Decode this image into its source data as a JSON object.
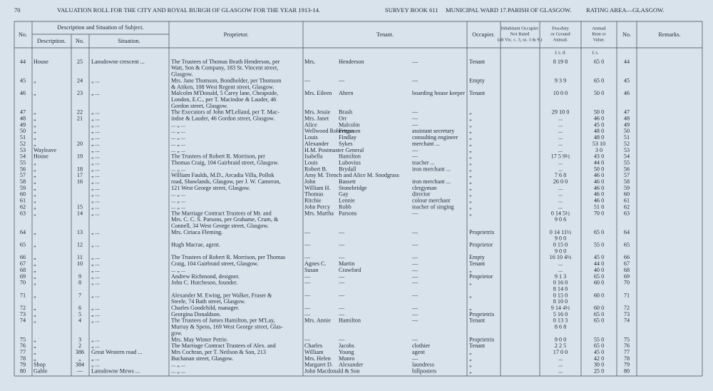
{
  "header": {
    "page_number": "70",
    "title": "VALUATION ROLL FOR THE CITY AND ROYAL BURGH OF GLASGOW FOR THE YEAR 1913-14.",
    "survey": "SURVEY BOOK 611",
    "ward": "MUNICIPAL WARD 17.",
    "parish": "PARISH OF GLASGOW.",
    "area": "RATING AREA—GLASGOW."
  },
  "columns": {
    "no": "No.",
    "group": "Description and Situation of Subject.",
    "description": "Description.",
    "number": "No.",
    "situation": "Situation.",
    "proprietor": "Proprietor.",
    "tenant": "Tenant.",
    "occupier": "Occupier.",
    "inhabitant": [
      "Inhabitant Occupier",
      "Not Rated",
      "(48 Vic. c. 3, ss. 3 & 9.)"
    ],
    "feu": [
      "Feu-duty",
      "or Ground",
      "Annual."
    ],
    "rent": [
      "Annual",
      "Rent or",
      "Value."
    ],
    "no2": "No.",
    "remarks": "Remarks.",
    "feu_units": "£  s.  d.",
    "rent_units": "£  s."
  },
  "table": {
    "rows": [
      [
        "44",
        "House",
        "25",
        "Lansdowne crescent ...",
        "The Trustees of Thomas Beath Henderson, per",
        "Mrs.",
        "Henderson",
        "—",
        "Tenant",
        "8 19 8",
        "65 0",
        "44"
      ],
      [
        null,
        null,
        null,
        null,
        "Watt, Son & Company, 183 St. Vincent street,",
        null,
        null,
        null,
        null,
        null,
        null,
        null
      ],
      [
        null,
        null,
        null,
        null,
        "Glasgow.",
        null,
        null,
        null,
        null,
        null,
        null,
        null
      ],
      [
        "45",
        "„",
        "24",
        "„ ...",
        "Mrs. Jane Thomson, Bondholder, per Thomson",
        "—",
        "—",
        "—",
        "Empty",
        "9 3 9",
        "65 0",
        "45"
      ],
      [
        null,
        null,
        null,
        null,
        "& Aitken, 108 West Regent street, Glasgow.",
        null,
        null,
        null,
        null,
        null,
        null,
        null
      ],
      [
        "46",
        "„",
        "23",
        "„ ...",
        "Malcolm M'Donald, 5 Carey lane, Cheapside,",
        "Mrs. Eileen",
        "Ahern",
        "boarding house keeper",
        "Tenant",
        "10 0 0",
        "50 0",
        "46"
      ],
      [
        null,
        null,
        null,
        null,
        "London, E.C., per T. Macindoe & Lauder, 46",
        null,
        null,
        null,
        null,
        null,
        null,
        null
      ],
      [
        null,
        null,
        null,
        null,
        "Gordon street, Glasgow.",
        null,
        null,
        null,
        null,
        null,
        null,
        null
      ],
      [
        "47",
        "„",
        "22",
        "„ ...",
        "The Executors of John M'Lelland, per T. Mac-",
        "Mrs. Jessie",
        "Brash",
        "—",
        "„",
        "29 10 0",
        "50 0",
        "47"
      ],
      [
        "48",
        "„",
        "21",
        "„ ...",
        "indoe & Lauder, 46 Gordon street, Glasgow.",
        "Mrs. Janet",
        "Orr",
        "—",
        "„",
        "...",
        "46 0",
        "48"
      ],
      [
        "49",
        "„",
        null,
        "„ ...",
        "... „ ...",
        "Alice",
        "Malcolm",
        "—",
        "„",
        "...",
        "45 0",
        "49"
      ],
      [
        "50",
        "„",
        null,
        "„ ...",
        "... „ ...",
        "Wellwood Robertson",
        "Ferguson",
        "assistant secretary",
        "„",
        "...",
        "48 0",
        "50"
      ],
      [
        "51",
        "„",
        null,
        "„ ...",
        "... „ ...",
        "Louis",
        "Findlay",
        "consulting engineer",
        "„",
        "...",
        "48 0",
        "51"
      ],
      [
        "52",
        "„",
        "20",
        "„ ...",
        "... „ ...",
        "Alexander",
        "Sykes",
        "merchant ...",
        "„",
        "...",
        "53 10",
        "52"
      ],
      [
        "53",
        "Wayleave",
        null,
        "„ ...",
        "... „ ...",
        "H.M. Postmaster General",
        null,
        "—",
        "„",
        "...",
        "3 0",
        "53"
      ],
      [
        "54",
        "House",
        "19",
        "„ ...",
        "The Trustees of Robert R. Morrison, per",
        "Isabella",
        "Hamilton",
        "—",
        "„",
        "17 5 9½",
        "43 0",
        "54"
      ],
      [
        "55",
        "„",
        null,
        "„ ...",
        "Thomas Craig, 104 Gairbraid street, Glasgow.",
        "Louis",
        "Lubovius",
        "teacher ...",
        "„",
        "...",
        "44 0",
        "55"
      ],
      [
        "56",
        "„",
        "18",
        "„ ...",
        "... „ ...",
        "Robert B.",
        "Brydall",
        "iron merchant ...",
        "„",
        "...",
        "50 0",
        "56"
      ],
      [
        "57",
        "„",
        "17",
        "„ ...",
        "William Faulds, M.D., Arcadia Villa, Pollok",
        "Amy M. Trench and Alice M. Snodgrass",
        null,
        null,
        "„",
        "7 6 8",
        "46 0",
        "57"
      ],
      [
        "58",
        "„",
        "16",
        "„ ...",
        "road, Shawlands, Glasgow, per J. W. Cameron,",
        "John",
        "Bassett",
        "iron merchant ...",
        "„",
        "26 0 0",
        "46 0",
        "58"
      ],
      [
        "59",
        "„",
        null,
        "„ ...",
        "121 West George street, Glasgow.",
        "William H.",
        "Stonebridge",
        "clergyman",
        "„",
        "...",
        "46 0",
        "59"
      ],
      [
        "60",
        "„",
        null,
        "„ ...",
        "... „ ...",
        "Thomas",
        "Gay",
        "director",
        "„",
        "...",
        "46 0",
        "60"
      ],
      [
        "61",
        "„",
        null,
        "„ ...",
        "... „ ...",
        "Ritchie",
        "Lennie",
        "colour merchant",
        "„",
        "...",
        "46 0",
        "61"
      ],
      [
        "62",
        "„",
        "15",
        "„ ...",
        "... „ ...",
        "John Percy",
        "Robb",
        "teacher of singing",
        "„",
        "...",
        "51 0",
        "62"
      ],
      [
        "63",
        "„",
        "14",
        "„ ...",
        "The Marriage Contract Trustees of Mr. and",
        "Mrs. Martha",
        "Parsons",
        "—",
        "„",
        "0 14 5½",
        "70 0",
        "63"
      ],
      [
        null,
        null,
        null,
        null,
        "Mrs. C. C. S. Parsons, per Grahame, Crum, &",
        null,
        null,
        null,
        null,
        "9 0 6",
        null,
        null
      ],
      [
        null,
        null,
        null,
        null,
        "Connell, 34 West George street, Glasgow.",
        null,
        null,
        null,
        null,
        null,
        null,
        null
      ],
      [
        "64",
        "„",
        "13",
        "„ ...",
        "Mrs. Ciriaca Fleming.",
        "—",
        "—",
        "—",
        "Proprietrix",
        "0 14 11½",
        "65 0",
        "64"
      ],
      [
        null,
        null,
        null,
        null,
        null,
        null,
        null,
        null,
        null,
        "9 0 0",
        null,
        null
      ],
      [
        "65",
        "„",
        "12",
        "„ ...",
        "Hugh Macrae, agent.",
        "—",
        "—",
        "—",
        "Proprietor",
        "0 15 0",
        "55 0",
        "65"
      ],
      [
        null,
        null,
        null,
        null,
        null,
        null,
        null,
        null,
        null,
        "9 0 0",
        null,
        null
      ],
      [
        "66",
        "„",
        "11",
        "„ ...",
        "The Trustees of Robert R. Morrison, per Thomas",
        "—",
        "—",
        "—",
        "Empty",
        "16 10 4½",
        "45 0",
        "66"
      ],
      [
        "67",
        "„",
        "10",
        "„ ...",
        "Craig, 104 Gairbraid street, Glasgow.",
        "Agnes C.",
        "Martin",
        "—",
        "Tenant",
        "...",
        "44 0",
        "67"
      ],
      [
        "68",
        "„",
        null,
        "„ ...",
        "... „ ...",
        "Susan",
        "Crawford",
        "—",
        "„",
        "...",
        "40 0",
        "68"
      ],
      [
        "69",
        "„",
        "9",
        "„ ...",
        "Andrew Richmond, designer.",
        "—",
        "—",
        "—",
        "Proprietor",
        "9 1 3",
        "65 0",
        "69"
      ],
      [
        "70",
        "„",
        "8",
        "„ ...",
        "John C. Hutcheson, founder.",
        "—",
        "—",
        "—",
        "„",
        "0 16 0",
        "60 0",
        "70"
      ],
      [
        null,
        null,
        null,
        null,
        null,
        null,
        null,
        null,
        null,
        "8 14 0",
        null,
        null
      ],
      [
        "71",
        "„",
        "7",
        "„ ...",
        "Alexander M. Ewing, per Walker, Fraser &",
        "—",
        "—",
        "—",
        "„",
        "0 15 0",
        "60 0",
        "71"
      ],
      [
        null,
        null,
        null,
        null,
        "Steele, 74 Bath street, Glasgow.",
        null,
        null,
        null,
        null,
        "8 10 0",
        null,
        null
      ],
      [
        "72",
        "„",
        "6",
        "„ ...",
        "Charles Goodchild, manager.",
        "—",
        "—",
        "—",
        "„",
        "9 14 4½",
        "60 0",
        "72"
      ],
      [
        "73",
        "„",
        "5",
        "„ ...",
        "Georgina Donaldson.",
        "—",
        "—",
        "—",
        "Proprietrix",
        "5 16 0",
        "65 0",
        "73"
      ],
      [
        "74",
        "„",
        "4",
        "„ ...",
        "The Trustees of James Hamilton, per M'Lay,",
        "Mrs. Annie",
        "Hamilton",
        "—",
        "Tenant",
        "0 13 3",
        "65 0",
        "74"
      ],
      [
        null,
        null,
        null,
        null,
        "Murray & Spens, 169 West George street, Glas-",
        null,
        null,
        null,
        null,
        "8 6 8",
        null,
        null
      ],
      [
        null,
        null,
        null,
        null,
        "gow.",
        null,
        null,
        null,
        null,
        null,
        null,
        null
      ],
      [
        "75",
        "„",
        "3",
        "„ ...",
        "Mrs. May Winter Petrie.",
        "—",
        "—",
        "—",
        "Proprietrix",
        "9 0 0",
        "55 0",
        "75"
      ],
      [
        "76",
        "„",
        "2",
        "„ ...",
        "The Marriage Contract Trustees of Alex. and",
        "Charles",
        "Jacobs",
        "clothier",
        "Tenant",
        "2 2 5",
        "65 0",
        "76"
      ],
      [
        "77",
        "„",
        "386",
        "Great Western road ...",
        "Mrs Cochran, per T. Neilson & Son, 213",
        "William",
        "Young",
        "agent",
        "„",
        "17 0 0",
        "45 0",
        "77"
      ],
      [
        "78",
        "„",
        "„",
        "„ ...",
        "Buchanan street, Glasgow.",
        "Mrs. Helen",
        "Munro",
        "—",
        "„",
        "...",
        "42 0",
        "78"
      ],
      [
        "79",
        "Shop",
        "384",
        "„ ...",
        "... „ ...",
        "Margaret D.",
        "Alexander",
        "laundress",
        "„",
        "...",
        "30 0",
        "79"
      ],
      [
        "80",
        "Gable",
        "—",
        "Lansdowne Mews ...",
        "... „ ...",
        "John Macdonald & Son",
        null,
        "billposters",
        "„",
        "...",
        "25 0",
        "80"
      ]
    ]
  }
}
